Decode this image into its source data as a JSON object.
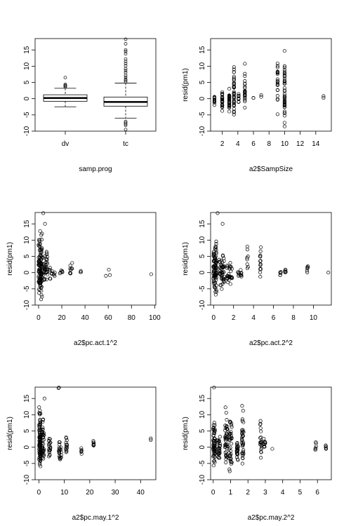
{
  "chart_data": [
    {
      "type": "boxplot",
      "xlabel": "samp.prog",
      "ylabel": "",
      "ylim": [
        -10,
        18.5
      ],
      "yticks": [
        -10,
        -5,
        0,
        5,
        10,
        15
      ],
      "categories": [
        "dv",
        "tc"
      ],
      "boxes": [
        {
          "name": "dv",
          "min": -2.5,
          "q1": -0.8,
          "median": 0.2,
          "q3": 1.2,
          "max": 3.2,
          "outliers": [
            3.6,
            3.9,
            4.1,
            4.4,
            6.5
          ]
        },
        {
          "name": "tc",
          "min": -6.0,
          "q1": -2.3,
          "median": -1.0,
          "q3": 0.5,
          "max": 4.8,
          "outliers": [
            -7.0,
            -7.4,
            -7.8,
            -8.2,
            -9.5,
            5.2,
            5.6,
            6.0,
            6.6,
            7.2,
            8.0,
            8.6,
            9.2,
            10.1,
            10.8,
            11.5,
            12.2,
            13.8,
            14.5,
            15.0,
            16.9,
            18.3
          ]
        }
      ]
    },
    {
      "type": "scatter",
      "xlabel": "a2$SampSize",
      "ylabel": "resid(pm1)",
      "xlim": [
        0.5,
        16
      ],
      "ylim": [
        -10,
        18.5
      ],
      "xticks": [
        2,
        4,
        6,
        8,
        10,
        12,
        14
      ],
      "yticks": [
        -10,
        -5,
        0,
        5,
        10,
        15
      ],
      "clusters": [
        {
          "x": 1,
          "n": 14,
          "lo": -3.2,
          "hi": 2.0
        },
        {
          "x": 2,
          "n": 30,
          "lo": -4.5,
          "hi": 4.2
        },
        {
          "x": 2.9,
          "n": 30,
          "lo": -5.2,
          "hi": 5.0
        },
        {
          "x": 3.5,
          "n": 40,
          "lo": -7.5,
          "hi": 13.8
        },
        {
          "x": 4.1,
          "n": 10,
          "lo": -2.0,
          "hi": 2.5
        },
        {
          "x": 4.9,
          "n": 25,
          "lo": -5.0,
          "hi": 11.5
        },
        {
          "x": 6,
          "n": 2,
          "lo": 0,
          "hi": 0.4
        },
        {
          "x": 7,
          "n": 2,
          "lo": 0,
          "hi": 1.5
        },
        {
          "x": 9.1,
          "n": 22,
          "lo": -7.0,
          "hi": 15.2
        },
        {
          "x": 10,
          "n": 45,
          "lo": -9.5,
          "hi": 18.5
        },
        {
          "x": 15,
          "n": 2,
          "lo": 0,
          "hi": 1.5
        }
      ]
    },
    {
      "type": "scatter",
      "xlabel": "a2$pc.act.1^2",
      "ylabel": "resid(pm1)",
      "xlim": [
        -3,
        101
      ],
      "ylim": [
        -10,
        18.5
      ],
      "xticks": [
        0,
        20,
        40,
        60,
        80,
        100
      ],
      "yticks": [
        -10,
        -5,
        0,
        5,
        10,
        15
      ],
      "clusters": [
        {
          "x": 1.5,
          "n": 120,
          "lo": -9.5,
          "hi": 14.5,
          "spread": 3
        },
        {
          "x": 6,
          "n": 40,
          "lo": -5.0,
          "hi": 9.0,
          "spread": 4
        },
        {
          "x": 12,
          "n": 14,
          "lo": -2.5,
          "hi": 3.0,
          "spread": 5
        },
        {
          "x": 19,
          "n": 6,
          "lo": -1.0,
          "hi": 1.5,
          "spread": 3
        },
        {
          "x": 28,
          "n": 10,
          "lo": -2.0,
          "hi": 4.0,
          "spread": 2
        },
        {
          "x": 36,
          "n": 3,
          "lo": 0,
          "hi": 1.0,
          "spread": 1
        },
        {
          "x": 58,
          "n": 1,
          "lo": -1.0,
          "hi": -1.0,
          "spread": 0
        },
        {
          "x": 61,
          "n": 2,
          "lo": -1.5,
          "hi": 1.8,
          "spread": 1
        },
        {
          "x": 97,
          "n": 1,
          "lo": -0.5,
          "hi": -0.5,
          "spread": 0
        }
      ],
      "points": [
        [
          4,
          18.3
        ],
        [
          5.5,
          15.0
        ],
        [
          3,
          12.0
        ]
      ]
    },
    {
      "type": "scatter",
      "xlabel": "a2$pc.act.2^2",
      "ylabel": "resid(pm1)",
      "xlim": [
        -0.3,
        11.8
      ],
      "ylim": [
        -10,
        18.5
      ],
      "xticks": [
        0,
        2,
        4,
        6,
        8,
        10
      ],
      "yticks": [
        -10,
        -5,
        0,
        5,
        10,
        15
      ],
      "clusters": [
        {
          "x": 0.15,
          "n": 90,
          "lo": -9.5,
          "hi": 14.0,
          "spread": 0.35
        },
        {
          "x": 0.8,
          "n": 50,
          "lo": -6.0,
          "hi": 8.0,
          "spread": 0.5
        },
        {
          "x": 1.6,
          "n": 30,
          "lo": -5.0,
          "hi": 4.5,
          "spread": 0.5
        },
        {
          "x": 2.6,
          "n": 12,
          "lo": -2.5,
          "hi": 2.0,
          "spread": 0.4
        },
        {
          "x": 3.4,
          "n": 8,
          "lo": -3.5,
          "hi": 11.0,
          "spread": 0.1
        },
        {
          "x": 4.7,
          "n": 14,
          "lo": -8.0,
          "hi": 10.8,
          "spread": 0.1
        },
        {
          "x": 6.7,
          "n": 5,
          "lo": -1.5,
          "hi": 1.5,
          "spread": 0.1
        },
        {
          "x": 7.2,
          "n": 6,
          "lo": -1.0,
          "hi": 1.5,
          "spread": 0.1
        },
        {
          "x": 9.4,
          "n": 6,
          "lo": -1.0,
          "hi": 4.0,
          "spread": 0.1
        },
        {
          "x": 11.5,
          "n": 1,
          "lo": 0,
          "hi": 0,
          "spread": 0
        }
      ],
      "points": [
        [
          0.4,
          18.3
        ],
        [
          0.9,
          15.0
        ]
      ]
    },
    {
      "type": "scatter",
      "xlabel": "a2$pc.may.1^2",
      "ylabel": "resid(pm1)",
      "xlim": [
        -1.5,
        46
      ],
      "ylim": [
        -10,
        18.5
      ],
      "xticks": [
        0,
        10,
        20,
        30,
        40
      ],
      "yticks": [
        -10,
        -5,
        0,
        5,
        10,
        15
      ],
      "clusters": [
        {
          "x": 0.4,
          "n": 90,
          "lo": -9.5,
          "hi": 14.5,
          "spread": 0.6
        },
        {
          "x": 1.6,
          "n": 40,
          "lo": -7.0,
          "hi": 12.5,
          "spread": 0.8
        },
        {
          "x": 4.2,
          "n": 20,
          "lo": -4.0,
          "hi": 4.5,
          "spread": 0.8
        },
        {
          "x": 8.3,
          "n": 22,
          "lo": -5.0,
          "hi": 3.0,
          "spread": 1.0
        },
        {
          "x": 10.8,
          "n": 14,
          "lo": -3.5,
          "hi": 5.5,
          "spread": 0.6
        },
        {
          "x": 16.7,
          "n": 6,
          "lo": -2.5,
          "hi": 0.5,
          "spread": 0.2
        },
        {
          "x": 21.5,
          "n": 8,
          "lo": -1.0,
          "hi": 3.5,
          "spread": 0.2
        },
        {
          "x": 44,
          "n": 2,
          "lo": 2.0,
          "hi": 3.2,
          "spread": 0
        }
      ],
      "points": [
        [
          7.7,
          18.2
        ],
        [
          7.9,
          18.4
        ],
        [
          2.2,
          15.0
        ]
      ]
    },
    {
      "type": "scatter",
      "xlabel": "a2$pc.may.2^2",
      "ylabel": "resid(pm1)",
      "xlim": [
        -0.15,
        6.8
      ],
      "ylim": [
        -10,
        18.5
      ],
      "xticks": [
        0,
        1,
        2,
        3,
        4,
        5,
        6
      ],
      "yticks": [
        -10,
        -5,
        0,
        5,
        10,
        15
      ],
      "clusters": [
        {
          "x": 0.05,
          "n": 60,
          "lo": -7.5,
          "hi": 11.0,
          "spread": 0.1
        },
        {
          "x": 0.3,
          "n": 30,
          "lo": -5.0,
          "hi": 6.0,
          "spread": 0.2
        },
        {
          "x": 0.75,
          "n": 45,
          "lo": -6.0,
          "hi": 14.5,
          "spread": 0.15
        },
        {
          "x": 1.0,
          "n": 40,
          "lo": -9.5,
          "hi": 12.0,
          "spread": 0.15
        },
        {
          "x": 1.4,
          "n": 25,
          "lo": -5.0,
          "hi": 4.0,
          "spread": 0.1
        },
        {
          "x": 1.7,
          "n": 35,
          "lo": -8.0,
          "hi": 15.0,
          "spread": 0.1
        },
        {
          "x": 2.75,
          "n": 20,
          "lo": -5.5,
          "hi": 12.0,
          "spread": 0.1
        },
        {
          "x": 2.95,
          "n": 10,
          "lo": -1.0,
          "hi": 4.5,
          "spread": 0.1
        },
        {
          "x": 3.4,
          "n": 1,
          "lo": -0.5,
          "hi": -0.5,
          "spread": 0
        },
        {
          "x": 5.9,
          "n": 6,
          "lo": -2.5,
          "hi": 3.5,
          "spread": 0.05
        },
        {
          "x": 6.5,
          "n": 5,
          "lo": -2.0,
          "hi": 2.5,
          "spread": 0.05
        }
      ],
      "points": [
        [
          0.05,
          18.4
        ]
      ]
    }
  ]
}
